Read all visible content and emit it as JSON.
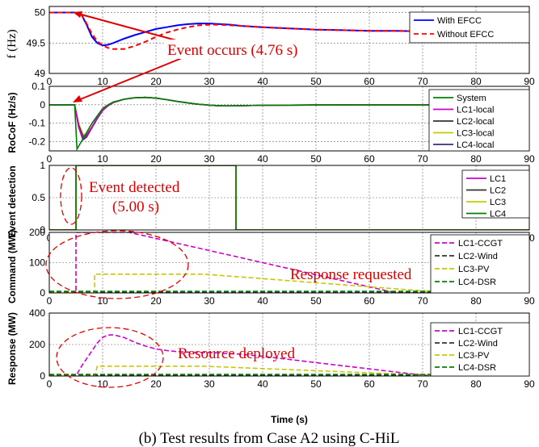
{
  "caption": "(b) Test results from Case A2 using C-HiL",
  "xlabel": "Time (s)",
  "chart_data": [
    {
      "type": "line",
      "ylabel": "f (Hz)",
      "xlim": [
        0,
        90
      ],
      "ylim": [
        49,
        50.1
      ],
      "xticks": [
        "0",
        "10",
        "20",
        "30",
        "40",
        "50",
        "60",
        "70",
        "80",
        "90"
      ],
      "yticks": [
        "49",
        "49.5",
        "50"
      ],
      "ytick_values": [
        49,
        49.5,
        50
      ],
      "grid": true,
      "legend": "top-right",
      "annotations": [
        {
          "text": "Event occurs (4.76 s)"
        }
      ],
      "series": [
        {
          "name": "With EFCC",
          "color": "#0000ff",
          "dash": "",
          "x": [
            0,
            4.76,
            6,
            7,
            8,
            9,
            10,
            11,
            12,
            14,
            16,
            18,
            20,
            22,
            24,
            26,
            28,
            30,
            32,
            34,
            36,
            40,
            45,
            50,
            55,
            60,
            65,
            70,
            75,
            80,
            85,
            90
          ],
          "y": [
            50,
            50,
            49.97,
            49.8,
            49.6,
            49.5,
            49.46,
            49.47,
            49.5,
            49.57,
            49.63,
            49.68,
            49.73,
            49.76,
            49.79,
            49.81,
            49.82,
            49.82,
            49.81,
            49.8,
            49.78,
            49.76,
            49.74,
            49.72,
            49.71,
            49.7,
            49.7,
            49.69,
            49.69,
            49.69,
            49.69,
            49.69
          ]
        },
        {
          "name": "Without EFCC",
          "color": "#ff0000",
          "dash": "6 4",
          "x": [
            0,
            4.76,
            6,
            7,
            8,
            9,
            10,
            11,
            12,
            14,
            16,
            18,
            20,
            22,
            24,
            26,
            28,
            30,
            32,
            34,
            36,
            40,
            45,
            50,
            55,
            60,
            65,
            70,
            75,
            80,
            85,
            90
          ],
          "y": [
            50,
            50,
            49.97,
            49.82,
            49.65,
            49.53,
            49.46,
            49.42,
            49.4,
            49.4,
            49.45,
            49.52,
            49.6,
            49.67,
            49.72,
            49.76,
            49.79,
            49.8,
            49.8,
            49.79,
            49.78,
            49.76,
            49.74,
            49.72,
            49.71,
            49.7,
            49.7,
            49.69,
            49.69,
            49.69,
            49.69,
            49.69
          ]
        }
      ]
    },
    {
      "type": "line",
      "ylabel": "RoCoF (Hz/s)",
      "xlim": [
        0,
        90
      ],
      "ylim": [
        -0.25,
        0.1
      ],
      "xticks": [
        "0",
        "10",
        "20",
        "30",
        "40",
        "50",
        "60",
        "70",
        "80",
        "90"
      ],
      "yticks": [
        "-0.2",
        "-0.1",
        "0",
        "0.1"
      ],
      "ytick_values": [
        -0.2,
        -0.1,
        0,
        0.1
      ],
      "grid": true,
      "legend": "right",
      "series": [
        {
          "name": "System",
          "color": "#008000",
          "dash": "",
          "x": [
            0,
            4.76,
            5.2,
            6,
            7,
            8,
            9,
            10,
            11,
            12,
            14,
            16,
            18,
            20,
            22,
            24,
            26,
            28,
            30,
            32,
            34,
            36,
            40,
            45,
            50,
            60,
            70,
            80,
            90
          ],
          "y": [
            0,
            0,
            -0.24,
            -0.2,
            -0.15,
            -0.1,
            -0.06,
            -0.02,
            0,
            0.015,
            0.03,
            0.038,
            0.04,
            0.036,
            0.028,
            0.018,
            0.01,
            0.003,
            -0.002,
            -0.006,
            -0.006,
            -0.005,
            -0.003,
            -0.002,
            -0.001,
            0,
            0,
            0,
            0
          ]
        },
        {
          "name": "LC1-local",
          "color": "#cc00cc",
          "dash": "",
          "x": [
            0,
            4.76,
            5.5,
            6.3,
            7,
            8,
            9,
            10,
            11,
            12,
            14,
            16,
            18,
            20,
            22,
            24,
            26,
            28,
            30,
            32,
            34,
            36,
            40,
            45,
            50,
            60,
            70,
            80,
            90
          ],
          "y": [
            0,
            0,
            -0.12,
            -0.18,
            -0.17,
            -0.12,
            -0.07,
            -0.03,
            -0.005,
            0.012,
            0.03,
            0.038,
            0.04,
            0.036,
            0.028,
            0.018,
            0.01,
            0.003,
            -0.002,
            -0.006,
            -0.006,
            -0.005,
            -0.003,
            -0.002,
            -0.001,
            0,
            0,
            0,
            0
          ]
        },
        {
          "name": "LC2-local",
          "color": "#333333",
          "dash": "",
          "x": [
            0,
            4.76,
            5.5,
            6.3,
            7,
            8,
            9,
            10,
            11,
            12,
            14,
            16,
            18,
            20,
            22,
            24,
            26,
            28,
            30,
            32,
            34,
            36,
            40,
            45,
            50,
            60,
            70,
            80,
            90
          ],
          "y": [
            0,
            0,
            -0.11,
            -0.17,
            -0.165,
            -0.12,
            -0.07,
            -0.03,
            -0.005,
            0.012,
            0.03,
            0.038,
            0.04,
            0.036,
            0.028,
            0.018,
            0.01,
            0.003,
            -0.002,
            -0.006,
            -0.006,
            -0.005,
            -0.003,
            -0.002,
            -0.001,
            0,
            0,
            0,
            0
          ]
        },
        {
          "name": "LC3-local",
          "color": "#c8c800",
          "dash": "",
          "x": [
            0,
            4.76,
            5.5,
            6.3,
            7,
            8,
            9,
            10,
            11,
            12,
            14,
            16,
            18,
            20,
            22,
            24,
            26,
            28,
            30,
            32,
            34,
            36,
            40,
            45,
            50,
            60,
            70,
            80,
            90
          ],
          "y": [
            0,
            0,
            -0.1,
            -0.16,
            -0.16,
            -0.12,
            -0.07,
            -0.03,
            -0.005,
            0.012,
            0.03,
            0.038,
            0.04,
            0.036,
            0.028,
            0.018,
            0.01,
            0.003,
            -0.002,
            -0.006,
            -0.006,
            -0.005,
            -0.003,
            -0.002,
            -0.001,
            0,
            0,
            0,
            0
          ]
        },
        {
          "name": "LC4-local",
          "color": "#3a2a80",
          "dash": "",
          "x": [
            0,
            4.76,
            5.5,
            6.3,
            7,
            8,
            9,
            10,
            11,
            12,
            14,
            16,
            18,
            20,
            22,
            24,
            26,
            28,
            30,
            32,
            34,
            36,
            40,
            45,
            50,
            60,
            70,
            80,
            90
          ],
          "y": [
            0,
            0,
            -0.12,
            -0.19,
            -0.175,
            -0.125,
            -0.075,
            -0.032,
            -0.006,
            0.012,
            0.03,
            0.038,
            0.04,
            0.036,
            0.028,
            0.018,
            0.01,
            0.003,
            -0.002,
            -0.006,
            -0.006,
            -0.005,
            -0.003,
            -0.002,
            -0.001,
            0,
            0,
            0,
            0
          ]
        }
      ]
    },
    {
      "type": "line",
      "ylabel": "Event detection",
      "xlim": [
        0,
        90
      ],
      "ylim": [
        0,
        1
      ],
      "xticks": [
        "0",
        "10",
        "20",
        "30",
        "40",
        "50",
        "60",
        "70",
        "80",
        "90"
      ],
      "yticks": [
        "0",
        "0.5",
        "1"
      ],
      "ytick_values": [
        0,
        0.5,
        1
      ],
      "grid": true,
      "legend": "right",
      "annotations": [
        {
          "text": "Event detected"
        },
        {
          "text": "(5.00 s)"
        }
      ],
      "series": [
        {
          "name": "LC1",
          "color": "#cc00cc",
          "dash": "",
          "x": [
            0,
            5,
            5,
            35,
            35,
            90
          ],
          "y": [
            0,
            0,
            1,
            1,
            0,
            0
          ]
        },
        {
          "name": "LC2",
          "color": "#333333",
          "dash": "",
          "x": [
            0,
            5,
            5,
            35,
            35,
            90
          ],
          "y": [
            0,
            0,
            1,
            1,
            0,
            0
          ]
        },
        {
          "name": "LC3",
          "color": "#c8c800",
          "dash": "",
          "x": [
            0,
            5,
            5,
            35,
            35,
            90
          ],
          "y": [
            0,
            0,
            1,
            1,
            0,
            0
          ]
        },
        {
          "name": "LC4",
          "color": "#008000",
          "dash": "",
          "x": [
            0,
            5,
            5,
            35,
            35,
            90
          ],
          "y": [
            0,
            0,
            1,
            1,
            0,
            0
          ]
        }
      ]
    },
    {
      "type": "line",
      "ylabel": "Command (MW)",
      "xlim": [
        0,
        90
      ],
      "ylim": [
        0,
        200
      ],
      "xticks": [
        "0",
        "10",
        "20",
        "30",
        "40",
        "50",
        "60",
        "70",
        "80",
        "90"
      ],
      "yticks": [
        "0",
        "100",
        "200"
      ],
      "ytick_values": [
        0,
        100,
        200
      ],
      "grid": true,
      "legend": "right",
      "annotations": [
        {
          "text": "Response requested"
        }
      ],
      "series": [
        {
          "name": "LC1-CCGT",
          "color": "#cc00cc",
          "dash": "6 3",
          "x": [
            0,
            5,
            5,
            15,
            65,
            90
          ],
          "y": [
            0,
            0,
            200,
            200,
            0,
            0
          ]
        },
        {
          "name": "LC2-Wind",
          "color": "#333333",
          "dash": "6 3",
          "x": [
            0,
            90
          ],
          "y": [
            3,
            3
          ]
        },
        {
          "name": "LC3-PV",
          "color": "#c8c800",
          "dash": "6 3",
          "x": [
            0,
            8.5,
            8.5,
            29,
            75,
            90
          ],
          "y": [
            0,
            0,
            62,
            62,
            0,
            0
          ]
        },
        {
          "name": "LC4-DSR",
          "color": "#008000",
          "dash": "6 3",
          "x": [
            0,
            90
          ],
          "y": [
            5,
            5
          ]
        }
      ]
    },
    {
      "type": "line",
      "ylabel": "Response (MW)",
      "xlim": [
        0,
        90
      ],
      "ylim": [
        0,
        400
      ],
      "xticks": [
        "0",
        "10",
        "20",
        "30",
        "40",
        "50",
        "60",
        "70",
        "80",
        "90"
      ],
      "yticks": [
        "0",
        "200",
        "400"
      ],
      "ytick_values": [
        0,
        200,
        400
      ],
      "grid": true,
      "legend": "right",
      "annotations": [
        {
          "text": "Resource deployed"
        }
      ],
      "series": [
        {
          "name": "LC1-CCGT",
          "color": "#cc00cc",
          "dash": "6 3",
          "x": [
            0,
            5,
            5.5,
            6,
            7,
            8,
            9,
            10,
            11,
            12,
            14,
            16,
            18,
            20,
            22,
            24,
            26,
            28,
            30,
            32,
            34,
            36,
            40,
            45,
            50,
            55,
            60,
            65,
            70,
            75,
            80,
            90
          ],
          "y": [
            0,
            0,
            30,
            60,
            110,
            160,
            210,
            245,
            260,
            262,
            245,
            215,
            190,
            172,
            162,
            155,
            152,
            150,
            149,
            146,
            142,
            138,
            125,
            105,
            85,
            65,
            45,
            25,
            5,
            0,
            0,
            0
          ]
        },
        {
          "name": "LC2-Wind",
          "color": "#333333",
          "dash": "6 3",
          "x": [
            0,
            90
          ],
          "y": [
            5,
            5
          ]
        },
        {
          "name": "LC3-PV",
          "color": "#c8c800",
          "dash": "6 3",
          "x": [
            0,
            8.5,
            9,
            29,
            75,
            90
          ],
          "y": [
            0,
            0,
            62,
            62,
            0,
            0
          ]
        },
        {
          "name": "LC4-DSR",
          "color": "#008000",
          "dash": "6 3",
          "x": [
            0,
            90
          ],
          "y": [
            10,
            10
          ]
        }
      ]
    }
  ]
}
